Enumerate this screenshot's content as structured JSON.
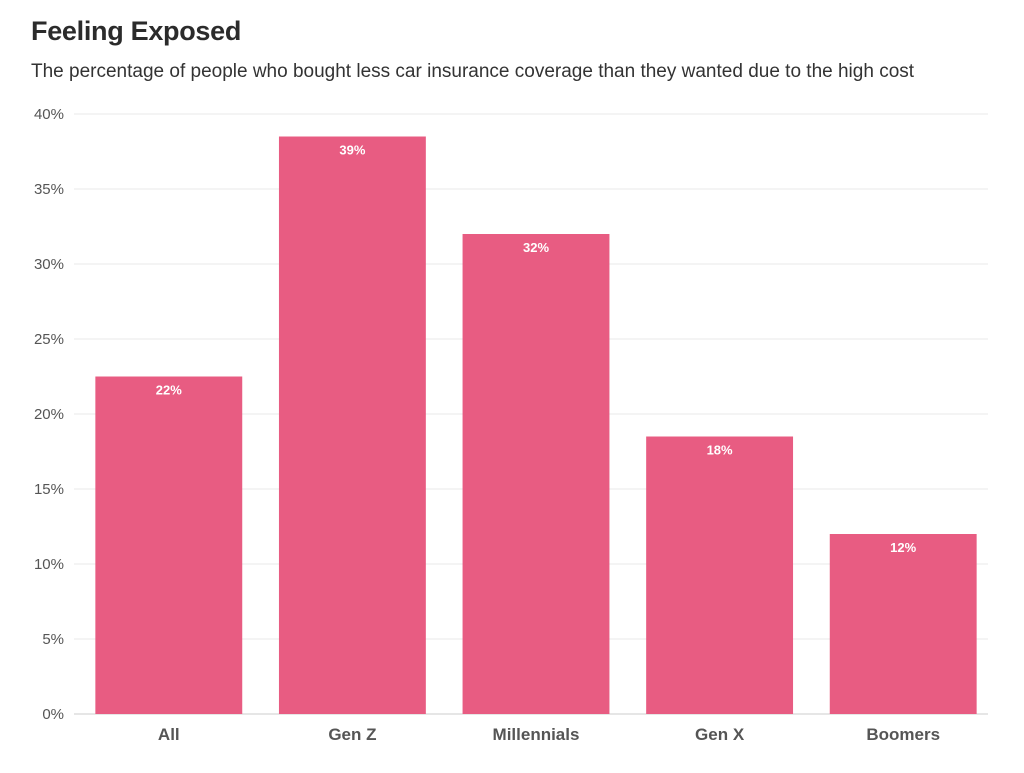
{
  "chart_data": {
    "type": "bar",
    "title": "Feeling Exposed",
    "subtitle": "The percentage of people who bought less car insurance coverage than they wanted due to the high cost",
    "categories": [
      "All",
      "Gen Z",
      "Millennials",
      "Gen X",
      "Boomers"
    ],
    "values": [
      22.5,
      38.5,
      32,
      18.5,
      12
    ],
    "data_labels": [
      "22%",
      "39%",
      "32%",
      "18%",
      "12%"
    ],
    "xlabel": "",
    "ylabel": "",
    "ylim": [
      0,
      40
    ],
    "yticks": [
      0,
      5,
      10,
      15,
      20,
      25,
      30,
      35,
      40
    ],
    "ytick_labels": [
      "0%",
      "5%",
      "10%",
      "15%",
      "20%",
      "25%",
      "30%",
      "35%",
      "40%"
    ],
    "grid": true,
    "legend": "none",
    "colors": {
      "bar": "#e85c82",
      "grid": "#e9e9e9",
      "baseline": "#cccccc"
    }
  }
}
